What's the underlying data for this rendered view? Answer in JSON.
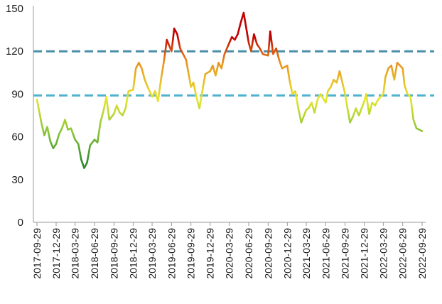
{
  "chart_data": {
    "type": "line",
    "title": "",
    "xlabel": "",
    "ylabel": "",
    "ylim": [
      0,
      150
    ],
    "yticks": [
      "0",
      "30",
      "60",
      "90",
      "120",
      "150"
    ],
    "xticks": [
      "2017-09-29",
      "2017-12-29",
      "2018-03-29",
      "2018-06-29",
      "2018-09-29",
      "2018-12-29",
      "2019-03-29",
      "2019-06-29",
      "2019-09-29",
      "2019-12-29",
      "2020-03-29",
      "2020-06-29",
      "2020-09-29",
      "2020-12-29",
      "2021-03-29",
      "2021-06-29",
      "2021-09-29",
      "2021-12-29",
      "2022-03-29",
      "2022-06-29",
      "2022-09-29"
    ],
    "reference_lines": [
      {
        "value": 120,
        "color": "#4a8fa8"
      },
      {
        "value": 89,
        "color": "#4fb3cf"
      }
    ],
    "grid": false,
    "color_scale": {
      "low": "#2e8b2e",
      "mid": "#e6e62e",
      "high": "#c00000"
    },
    "series": [
      {
        "x": [
          "2017-09-29",
          "2017-10-20",
          "2017-11-03",
          "2017-11-17",
          "2017-12-01",
          "2017-12-15",
          "2017-12-29",
          "2018-01-12",
          "2018-01-26",
          "2018-02-09",
          "2018-02-23",
          "2018-03-09",
          "2018-03-29",
          "2018-04-13",
          "2018-04-27",
          "2018-05-11",
          "2018-05-25",
          "2018-06-08",
          "2018-06-29",
          "2018-07-13",
          "2018-07-27",
          "2018-08-10",
          "2018-08-24",
          "2018-09-07",
          "2018-09-29",
          "2018-10-12",
          "2018-10-26",
          "2018-11-09",
          "2018-11-23",
          "2018-12-07",
          "2018-12-29",
          "2019-01-11",
          "2019-01-25",
          "2019-02-08",
          "2019-02-22",
          "2019-03-08",
          "2019-03-29",
          "2019-04-12",
          "2019-04-26",
          "2019-05-10",
          "2019-05-24",
          "2019-06-07",
          "2019-06-29",
          "2019-07-12",
          "2019-07-26",
          "2019-08-09",
          "2019-08-23",
          "2019-09-06",
          "2019-09-29",
          "2019-10-11",
          "2019-10-25",
          "2019-11-08",
          "2019-11-22",
          "2019-12-06",
          "2019-12-29",
          "2020-01-10",
          "2020-01-24",
          "2020-02-07",
          "2020-02-21",
          "2020-03-06",
          "2020-03-29",
          "2020-04-10",
          "2020-04-24",
          "2020-05-08",
          "2020-05-22",
          "2020-06-05",
          "2020-06-29",
          "2020-07-10",
          "2020-07-24",
          "2020-08-07",
          "2020-08-21",
          "2020-09-04",
          "2020-09-29",
          "2020-10-09",
          "2020-10-23",
          "2020-11-06",
          "2020-11-20",
          "2020-12-04",
          "2020-12-29",
          "2021-01-08",
          "2021-01-22",
          "2021-02-05",
          "2021-02-19",
          "2021-03-05",
          "2021-03-29",
          "2021-04-09",
          "2021-04-23",
          "2021-05-07",
          "2021-05-21",
          "2021-06-04",
          "2021-06-29",
          "2021-07-09",
          "2021-07-23",
          "2021-08-06",
          "2021-08-20",
          "2021-09-03",
          "2021-09-29",
          "2021-10-08",
          "2021-10-22",
          "2021-11-05",
          "2021-11-19",
          "2021-12-03",
          "2021-12-29",
          "2022-01-07",
          "2022-01-21",
          "2022-02-04",
          "2022-02-18",
          "2022-03-04",
          "2022-03-29",
          "2022-04-08",
          "2022-04-22",
          "2022-05-06",
          "2022-05-20",
          "2022-06-03",
          "2022-06-29",
          "2022-07-08",
          "2022-07-22",
          "2022-08-05",
          "2022-08-19",
          "2022-09-02",
          "2022-09-29"
        ],
        "values": [
          86,
          70,
          61,
          67,
          57,
          52,
          55,
          62,
          66,
          72,
          65,
          66,
          58,
          55,
          44,
          38,
          42,
          54,
          58,
          56,
          70,
          78,
          88,
          72,
          76,
          82,
          77,
          75,
          80,
          92,
          93,
          108,
          112,
          108,
          100,
          95,
          88,
          92,
          85,
          100,
          113,
          128,
          120,
          136,
          132,
          122,
          118,
          114,
          95,
          98,
          88,
          80,
          92,
          104,
          106,
          110,
          103,
          112,
          108,
          118,
          126,
          130,
          128,
          132,
          140,
          147,
          126,
          120,
          132,
          125,
          122,
          118,
          117,
          134,
          118,
          122,
          114,
          108,
          110,
          100,
          90,
          92,
          80,
          70,
          79,
          80,
          84,
          77,
          86,
          90,
          84,
          92,
          95,
          100,
          98,
          106,
          90,
          82,
          70,
          74,
          80,
          75,
          85,
          90,
          76,
          84,
          82,
          86,
          90,
          102,
          108,
          110,
          100,
          112,
          108,
          96,
          90,
          88,
          72,
          66,
          64
        ]
      }
    ]
  }
}
